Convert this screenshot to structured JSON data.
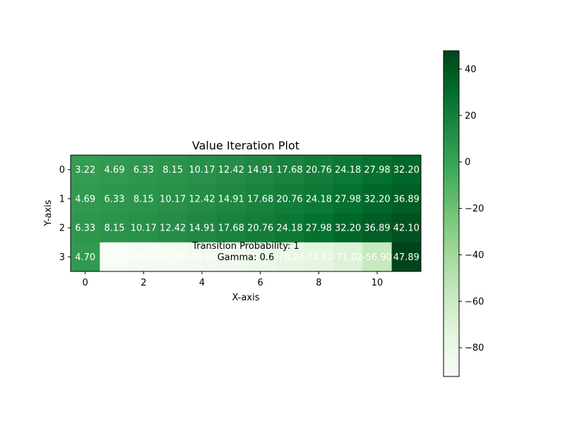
{
  "chart_data": {
    "type": "heatmap",
    "title": "Value Iteration Plot",
    "xlabel": "X-axis",
    "ylabel": "Y-axis",
    "x_ticks": [
      0,
      2,
      4,
      6,
      8,
      10
    ],
    "y_ticks": [
      0,
      1,
      2,
      3
    ],
    "rows": 4,
    "cols": 12,
    "values": [
      [
        3.22,
        4.69,
        6.33,
        8.15,
        10.17,
        12.42,
        14.91,
        17.68,
        20.76,
        24.18,
        27.98,
        32.2
      ],
      [
        4.69,
        6.33,
        8.15,
        10.17,
        12.42,
        14.91,
        17.68,
        20.76,
        24.18,
        27.98,
        32.2,
        36.89
      ],
      [
        6.33,
        8.15,
        10.17,
        12.42,
        14.91,
        17.68,
        20.76,
        24.18,
        27.98,
        32.2,
        36.89,
        42.1
      ],
      [
        4.7,
        -92.0,
        -90.0,
        -89.0,
        -88.0,
        -86.0,
        -82.0,
        -78.24,
        -74.82,
        -71.02,
        -56.9,
        47.89
      ]
    ],
    "labels": [
      [
        "3.22",
        "4.69",
        "6.33",
        "8.15",
        "10.17",
        "12.42",
        "14.91",
        "17.68",
        "20.76",
        "24.18",
        "27.98",
        "32.20"
      ],
      [
        "4.69",
        "6.33",
        "8.15",
        "10.17",
        "12.42",
        "14.91",
        "17.68",
        "20.76",
        "24.18",
        "27.98",
        "32.20",
        "36.89"
      ],
      [
        "6.33",
        "8.15",
        "10.17",
        "12.42",
        "14.91",
        "17.68",
        "20.76",
        "24.18",
        "27.98",
        "32.20",
        "36.89",
        "42.10"
      ],
      [
        "4.70",
        "-92.00",
        "-90.00",
        "-89.00",
        "-88.00",
        "-86.00",
        "-82.00",
        "-78.24",
        "-74.82",
        "-71.02",
        "-56.90",
        "47.89"
      ]
    ],
    "colorbar": {
      "colormap": "Greens",
      "vmin": -92.4,
      "vmax": 47.89,
      "ticks": [
        40,
        20,
        0,
        -20,
        -40,
        -60,
        -80
      ],
      "tick_labels": [
        "40",
        "20",
        "0",
        "−20",
        "−40",
        "−60",
        "−80"
      ]
    },
    "annotations": [
      "Transition Probability: 1",
      "Gamma: 0.6"
    ],
    "grid": false
  }
}
